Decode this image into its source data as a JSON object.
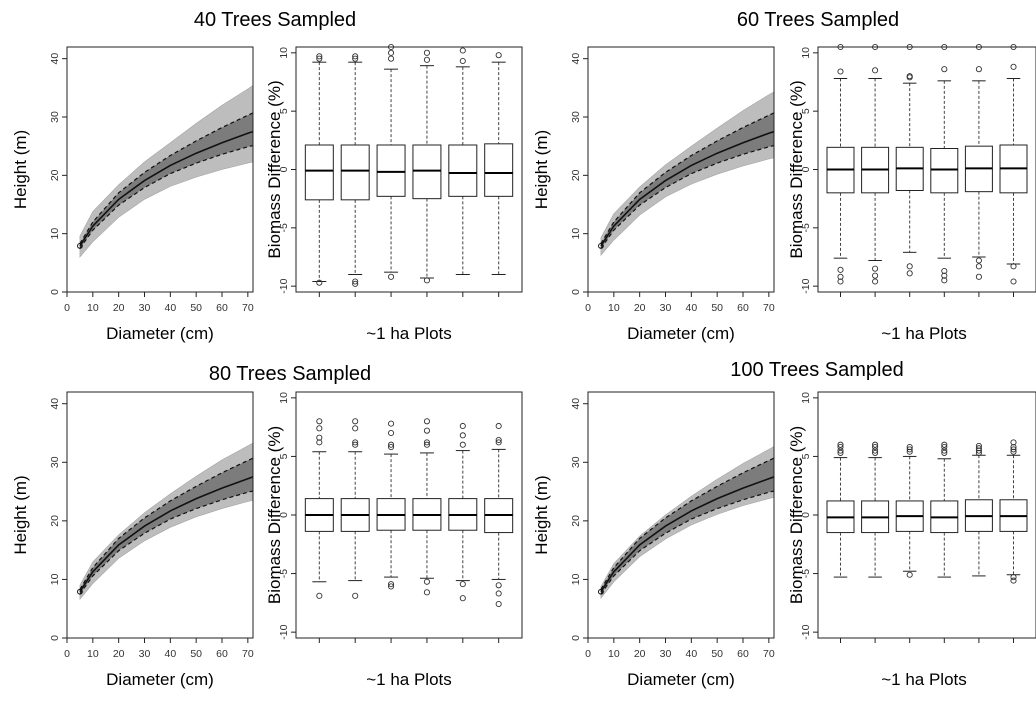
{
  "figure": {
    "panels": 4
  },
  "chart_data": [
    {
      "title": "40 Trees Sampled",
      "curve": {
        "type": "line",
        "xlabel": "Diameter (cm)",
        "ylabel": "Height (m)",
        "xlim": [
          0,
          72
        ],
        "ylim": [
          0,
          42
        ],
        "xticks": [
          0,
          10,
          20,
          30,
          40,
          50,
          60,
          70
        ],
        "yticks": [
          0,
          10,
          20,
          30,
          40
        ],
        "grid": false,
        "x": [
          5,
          10,
          20,
          30,
          40,
          50,
          60,
          70,
          72
        ],
        "series": [
          {
            "role": "fit",
            "style": "solid",
            "values": [
              7.9,
              11.3,
              15.9,
              19.1,
              21.7,
              23.8,
              25.6,
              27.2,
              27.5
            ]
          },
          {
            "role": "upper",
            "style": "dashed",
            "values": [
              8.3,
              12.0,
              17.0,
              20.5,
              23.4,
              25.9,
              28.2,
              30.3,
              30.7
            ]
          },
          {
            "role": "lower",
            "style": "dashed",
            "values": [
              7.5,
              10.6,
              14.9,
              17.9,
              20.3,
              22.1,
              23.6,
              24.9,
              25.1
            ]
          }
        ],
        "band_values": {
          "upper": [
            9.6,
            13.8,
            18.4,
            22.3,
            25.6,
            28.9,
            32.0,
            34.8,
            35.4
          ],
          "lower": [
            6.0,
            8.6,
            12.8,
            15.9,
            18.1,
            19.7,
            21.0,
            22.1,
            22.3
          ]
        }
      },
      "boxplot": {
        "type": "box",
        "xlabel": "~1 ha Plots",
        "ylabel": "Biomass Difference (%)",
        "ylim": [
          -10.5,
          10.5
        ],
        "yticks": [
          -10,
          -5,
          0,
          5,
          10
        ],
        "plots": 6,
        "boxes": [
          {
            "whisker_low": -9.6,
            "q1": -2.6,
            "median": -0.1,
            "q3": 2.1,
            "whisker_high": 9.2,
            "outliers": [
              9.7,
              9.5,
              -9.7
            ]
          },
          {
            "whisker_low": -9.0,
            "q1": -2.6,
            "median": -0.1,
            "q3": 2.1,
            "whisker_high": 9.2,
            "outliers": [
              9.7,
              9.5,
              -9.6,
              -9.8
            ]
          },
          {
            "whisker_low": -8.8,
            "q1": -2.3,
            "median": -0.2,
            "q3": 2.1,
            "whisker_high": 8.6,
            "outliers": [
              10.5,
              10.0,
              9.5,
              -9.2
            ]
          },
          {
            "whisker_low": -9.3,
            "q1": -2.5,
            "median": -0.1,
            "q3": 2.1,
            "whisker_high": 8.9,
            "outliers": [
              10.0,
              9.4,
              -9.5
            ]
          },
          {
            "whisker_low": -9.0,
            "q1": -2.3,
            "median": -0.3,
            "q3": 2.1,
            "whisker_high": 8.8,
            "outliers": [
              10.2,
              9.3
            ]
          },
          {
            "whisker_low": -9.0,
            "q1": -2.3,
            "median": -0.3,
            "q3": 2.2,
            "whisker_high": 9.2,
            "outliers": [
              9.8
            ]
          }
        ]
      }
    },
    {
      "title": "60 Trees Sampled",
      "curve": {
        "type": "line",
        "xlabel": "Diameter (cm)",
        "ylabel": "Height (m)",
        "xlim": [
          0,
          72
        ],
        "ylim": [
          0,
          42
        ],
        "xticks": [
          0,
          10,
          20,
          30,
          40,
          50,
          60,
          70
        ],
        "yticks": [
          0,
          10,
          20,
          30,
          40
        ],
        "grid": false,
        "x": [
          5,
          10,
          20,
          30,
          40,
          50,
          60,
          70,
          72
        ],
        "series": [
          {
            "role": "fit",
            "style": "solid",
            "values": [
              7.9,
              11.3,
              15.9,
              19.1,
              21.7,
              23.8,
              25.6,
              27.2,
              27.5
            ]
          },
          {
            "role": "upper",
            "style": "dashed",
            "values": [
              8.3,
              12.0,
              17.0,
              20.5,
              23.4,
              25.9,
              28.2,
              30.3,
              30.7
            ]
          },
          {
            "role": "lower",
            "style": "dashed",
            "values": [
              7.5,
              10.6,
              14.9,
              17.9,
              20.3,
              22.1,
              23.6,
              24.9,
              25.1
            ]
          }
        ],
        "band_values": {
          "upper": [
            9.3,
            13.4,
            18.0,
            21.8,
            25.0,
            28.1,
            31.1,
            33.8,
            34.3
          ],
          "lower": [
            6.3,
            8.9,
            13.2,
            16.3,
            18.5,
            20.2,
            21.6,
            22.8,
            23.0
          ]
        }
      },
      "boxplot": {
        "type": "box",
        "xlabel": "~1 ha Plots",
        "ylabel": "Biomass Difference (%)",
        "ylim": [
          -10.5,
          10.5
        ],
        "yticks": [
          -10,
          -5,
          0,
          5,
          10
        ],
        "plots": 6,
        "boxes": [
          {
            "whisker_low": -7.6,
            "q1": -2.0,
            "median": 0.0,
            "q3": 1.9,
            "whisker_high": 7.8,
            "outliers": [
              10.5,
              8.4,
              -8.6,
              -9.2,
              -9.6
            ]
          },
          {
            "whisker_low": -7.8,
            "q1": -2.0,
            "median": 0.0,
            "q3": 1.9,
            "whisker_high": 7.8,
            "outliers": [
              10.5,
              8.5,
              -8.5,
              -9.1,
              -9.6
            ]
          },
          {
            "whisker_low": -7.1,
            "q1": -1.8,
            "median": 0.1,
            "q3": 1.9,
            "whisker_high": 7.4,
            "outliers": [
              10.5,
              8.0,
              7.9,
              -8.3,
              -8.9
            ]
          },
          {
            "whisker_low": -7.6,
            "q1": -2.0,
            "median": 0.0,
            "q3": 1.8,
            "whisker_high": 7.6,
            "outliers": [
              10.5,
              8.6,
              -8.7,
              -9.1,
              -9.5
            ]
          },
          {
            "whisker_low": -7.5,
            "q1": -1.9,
            "median": 0.1,
            "q3": 2.0,
            "whisker_high": 7.6,
            "outliers": [
              10.5,
              8.6,
              -7.8,
              -8.3,
              -9.2
            ]
          },
          {
            "whisker_low": -8.1,
            "q1": -2.0,
            "median": 0.1,
            "q3": 2.1,
            "whisker_high": 7.8,
            "outliers": [
              10.5,
              8.8,
              -8.3,
              -9.6
            ]
          }
        ]
      }
    },
    {
      "title": "80 Trees Sampled",
      "curve": {
        "type": "line",
        "xlabel": "Diameter (cm)",
        "ylabel": "Height (m)",
        "xlim": [
          0,
          72
        ],
        "ylim": [
          0,
          42
        ],
        "xticks": [
          0,
          10,
          20,
          30,
          40,
          50,
          60,
          70
        ],
        "yticks": [
          0,
          10,
          20,
          30,
          40
        ],
        "grid": false,
        "x": [
          5,
          10,
          20,
          30,
          40,
          50,
          60,
          70,
          72
        ],
        "series": [
          {
            "role": "fit",
            "style": "solid",
            "values": [
              7.9,
              11.3,
              15.9,
              19.1,
              21.7,
              23.8,
              25.6,
              27.2,
              27.5
            ]
          },
          {
            "role": "upper",
            "style": "dashed",
            "values": [
              8.3,
              12.0,
              17.0,
              20.5,
              23.4,
              25.9,
              28.2,
              30.3,
              30.7
            ]
          },
          {
            "role": "lower",
            "style": "dashed",
            "values": [
              7.5,
              10.6,
              14.9,
              17.9,
              20.3,
              22.1,
              23.6,
              24.9,
              25.1
            ]
          }
        ],
        "band_values": {
          "upper": [
            9.0,
            13.0,
            17.6,
            21.4,
            24.6,
            27.6,
            30.4,
            32.8,
            33.3
          ],
          "lower": [
            6.6,
            9.3,
            13.6,
            16.6,
            18.9,
            20.7,
            22.1,
            23.3,
            23.5
          ]
        }
      },
      "boxplot": {
        "type": "box",
        "xlabel": "~1 ha Plots",
        "ylabel": "Biomass Difference (%)",
        "ylim": [
          -10.5,
          10.5
        ],
        "yticks": [
          -10,
          -5,
          0,
          5,
          10
        ],
        "plots": 6,
        "boxes": [
          {
            "whisker_low": -5.7,
            "q1": -1.4,
            "median": 0.0,
            "q3": 1.4,
            "whisker_high": 5.4,
            "outliers": [
              8.0,
              7.4,
              6.6,
              6.2,
              -6.9
            ]
          },
          {
            "whisker_low": -5.6,
            "q1": -1.4,
            "median": 0.0,
            "q3": 1.4,
            "whisker_high": 5.4,
            "outliers": [
              8.0,
              7.4,
              6.2,
              6.0,
              -6.9
            ]
          },
          {
            "whisker_low": -5.3,
            "q1": -1.3,
            "median": 0.0,
            "q3": 1.4,
            "whisker_high": 5.2,
            "outliers": [
              7.8,
              7.0,
              6.0,
              5.8,
              -5.9,
              -6.1
            ]
          },
          {
            "whisker_low": -5.4,
            "q1": -1.3,
            "median": 0.0,
            "q3": 1.4,
            "whisker_high": 5.3,
            "outliers": [
              8.0,
              7.2,
              6.2,
              6.0,
              -5.7,
              -6.6
            ]
          },
          {
            "whisker_low": -5.6,
            "q1": -1.3,
            "median": 0.0,
            "q3": 1.4,
            "whisker_high": 5.5,
            "outliers": [
              7.6,
              6.8,
              6.0,
              -5.9,
              -7.1
            ]
          },
          {
            "whisker_low": -5.5,
            "q1": -1.5,
            "median": 0.0,
            "q3": 1.4,
            "whisker_high": 5.6,
            "outliers": [
              7.6,
              6.4,
              6.2,
              -6.0,
              -6.7,
              -7.6
            ]
          }
        ]
      }
    },
    {
      "title": "100 Trees Sampled",
      "curve": {
        "type": "line",
        "xlabel": "Diameter (cm)",
        "ylabel": "Height (m)",
        "xlim": [
          0,
          72
        ],
        "ylim": [
          0,
          42
        ],
        "xticks": [
          0,
          10,
          20,
          30,
          40,
          50,
          60,
          70
        ],
        "yticks": [
          0,
          10,
          20,
          30,
          40
        ],
        "grid": false,
        "x": [
          5,
          10,
          20,
          30,
          40,
          50,
          60,
          70,
          72
        ],
        "series": [
          {
            "role": "fit",
            "style": "solid",
            "values": [
              7.9,
              11.3,
              15.9,
              19.1,
              21.7,
              23.8,
              25.6,
              27.2,
              27.5
            ]
          },
          {
            "role": "upper",
            "style": "dashed",
            "values": [
              8.3,
              12.0,
              17.0,
              20.5,
              23.4,
              25.9,
              28.2,
              30.3,
              30.7
            ]
          },
          {
            "role": "lower",
            "style": "dashed",
            "values": [
              7.5,
              10.6,
              14.9,
              17.9,
              20.3,
              22.1,
              23.6,
              24.9,
              25.1
            ]
          }
        ],
        "band_values": {
          "upper": [
            8.8,
            12.7,
            17.4,
            21.0,
            24.2,
            27.1,
            29.8,
            32.2,
            32.7
          ],
          "lower": [
            6.8,
            9.6,
            13.9,
            16.9,
            19.3,
            21.1,
            22.6,
            23.8,
            24.0
          ]
        }
      },
      "boxplot": {
        "type": "box",
        "xlabel": "~1 ha Plots",
        "ylabel": "Biomass Difference (%)",
        "ylim": [
          -10.5,
          10.5
        ],
        "yticks": [
          -10,
          -5,
          0,
          5,
          10
        ],
        "plots": 6,
        "boxes": [
          {
            "whisker_low": -5.3,
            "q1": -1.5,
            "median": -0.2,
            "q3": 1.2,
            "whisker_high": 4.9,
            "outliers": [
              6.0,
              5.8,
              5.5,
              5.3
            ]
          },
          {
            "whisker_low": -5.3,
            "q1": -1.5,
            "median": -0.2,
            "q3": 1.2,
            "whisker_high": 4.9,
            "outliers": [
              6.0,
              5.8,
              5.5,
              5.3
            ]
          },
          {
            "whisker_low": -4.8,
            "q1": -1.4,
            "median": -0.1,
            "q3": 1.2,
            "whisker_high": 5.0,
            "outliers": [
              5.8,
              5.6,
              5.4,
              -5.1
            ]
          },
          {
            "whisker_low": -5.3,
            "q1": -1.5,
            "median": -0.2,
            "q3": 1.2,
            "whisker_high": 4.8,
            "outliers": [
              6.0,
              5.8,
              5.5,
              5.3
            ]
          },
          {
            "whisker_low": -5.2,
            "q1": -1.4,
            "median": -0.1,
            "q3": 1.3,
            "whisker_high": 5.1,
            "outliers": [
              5.9,
              5.7,
              5.5,
              5.3
            ]
          },
          {
            "whisker_low": -5.1,
            "q1": -1.4,
            "median": -0.1,
            "q3": 1.3,
            "whisker_high": 5.1,
            "outliers": [
              6.2,
              5.8,
              5.6,
              5.4,
              -5.3,
              -5.6
            ]
          }
        ]
      }
    }
  ]
}
